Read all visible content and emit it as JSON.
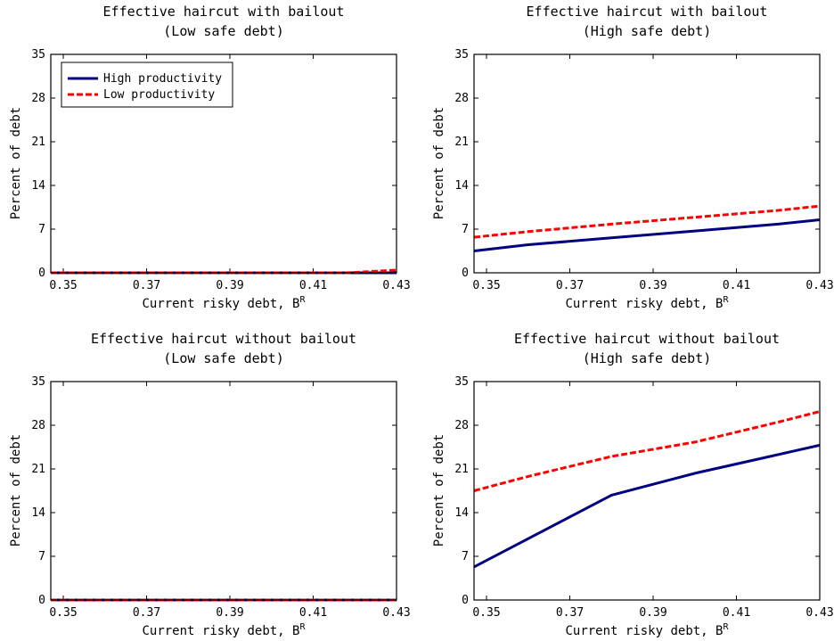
{
  "chart_data": [
    {
      "type": "line",
      "title": "Effective haircut with bailout",
      "subtitle": "(Low safe debt)",
      "xlabel": "Current risky debt, B",
      "xlabel_sup": "R",
      "ylabel": "Percent of debt",
      "xlim": [
        0.347,
        0.43
      ],
      "ylim": [
        0,
        35
      ],
      "xticks": [
        "0.35",
        "0.37",
        "0.39",
        "0.41",
        "0.43"
      ],
      "yticks": [
        "0",
        "7",
        "14",
        "21",
        "28",
        "35"
      ],
      "grid": false,
      "legend": {
        "position": "top-left",
        "entries": [
          "High productivity",
          "Low productivity"
        ]
      },
      "series": [
        {
          "name": "High productivity",
          "color": "#000080",
          "dash": "solid",
          "x": [
            0.347,
            0.36,
            0.38,
            0.4,
            0.415,
            0.43
          ],
          "y": [
            0,
            0,
            0,
            0,
            0,
            0
          ]
        },
        {
          "name": "Low productivity",
          "color": "#ff0000",
          "dash": "dashed",
          "x": [
            0.347,
            0.36,
            0.38,
            0.4,
            0.418,
            0.425,
            0.43
          ],
          "y": [
            0,
            0,
            0,
            0,
            0,
            0.25,
            0.45
          ]
        }
      ]
    },
    {
      "type": "line",
      "title": "Effective haircut with bailout",
      "subtitle": "(High safe debt)",
      "xlabel": "Current risky debt, B",
      "xlabel_sup": "R",
      "ylabel": "Percent of debt",
      "xlim": [
        0.347,
        0.43
      ],
      "ylim": [
        0,
        35
      ],
      "xticks": [
        "0.35",
        "0.37",
        "0.39",
        "0.41",
        "0.43"
      ],
      "yticks": [
        "0",
        "7",
        "14",
        "21",
        "28",
        "35"
      ],
      "grid": false,
      "series": [
        {
          "name": "High productivity",
          "color": "#000080",
          "dash": "solid",
          "x": [
            0.347,
            0.36,
            0.38,
            0.4,
            0.42,
            0.43
          ],
          "y": [
            3.5,
            4.5,
            5.6,
            6.7,
            7.8,
            8.5
          ]
        },
        {
          "name": "Low productivity",
          "color": "#ff0000",
          "dash": "dashed",
          "x": [
            0.347,
            0.36,
            0.38,
            0.4,
            0.42,
            0.43
          ],
          "y": [
            5.7,
            6.6,
            7.8,
            8.9,
            10.0,
            10.7
          ]
        }
      ]
    },
    {
      "type": "line",
      "title": "Effective haircut without bailout",
      "subtitle": "(Low safe debt)",
      "xlabel": "Current risky debt, B",
      "xlabel_sup": "R",
      "ylabel": "Percent of debt",
      "xlim": [
        0.347,
        0.43
      ],
      "ylim": [
        0,
        35
      ],
      "xticks": [
        "0.35",
        "0.37",
        "0.39",
        "0.41",
        "0.43"
      ],
      "yticks": [
        "0",
        "7",
        "14",
        "21",
        "28",
        "35"
      ],
      "grid": false,
      "series": [
        {
          "name": "High productivity",
          "color": "#000080",
          "dash": "solid",
          "x": [
            0.347,
            0.36,
            0.38,
            0.4,
            0.42,
            0.43
          ],
          "y": [
            0,
            0,
            0,
            0,
            0,
            0
          ]
        },
        {
          "name": "Low productivity",
          "color": "#ff0000",
          "dash": "dashed",
          "x": [
            0.347,
            0.36,
            0.38,
            0.4,
            0.42,
            0.43
          ],
          "y": [
            0,
            0,
            0,
            0,
            0,
            0
          ]
        }
      ]
    },
    {
      "type": "line",
      "title": "Effective haircut without bailout",
      "subtitle": "(High safe debt)",
      "xlabel": "Current risky debt, B",
      "xlabel_sup": "R",
      "ylabel": "Percent of debt",
      "xlim": [
        0.347,
        0.43
      ],
      "ylim": [
        0,
        35
      ],
      "xticks": [
        "0.35",
        "0.37",
        "0.39",
        "0.41",
        "0.43"
      ],
      "yticks": [
        "0",
        "7",
        "14",
        "21",
        "28",
        "35"
      ],
      "grid": false,
      "series": [
        {
          "name": "High productivity",
          "color": "#000080",
          "dash": "solid",
          "x": [
            0.347,
            0.38,
            0.4,
            0.416,
            0.43
          ],
          "y": [
            5.3,
            16.8,
            20.3,
            22.7,
            24.8
          ]
        },
        {
          "name": "Low productivity",
          "color": "#ff0000",
          "dash": "dashed",
          "x": [
            0.347,
            0.36,
            0.38,
            0.4,
            0.42,
            0.43
          ],
          "y": [
            17.5,
            19.8,
            23.0,
            25.3,
            28.5,
            30.2
          ]
        }
      ]
    }
  ]
}
